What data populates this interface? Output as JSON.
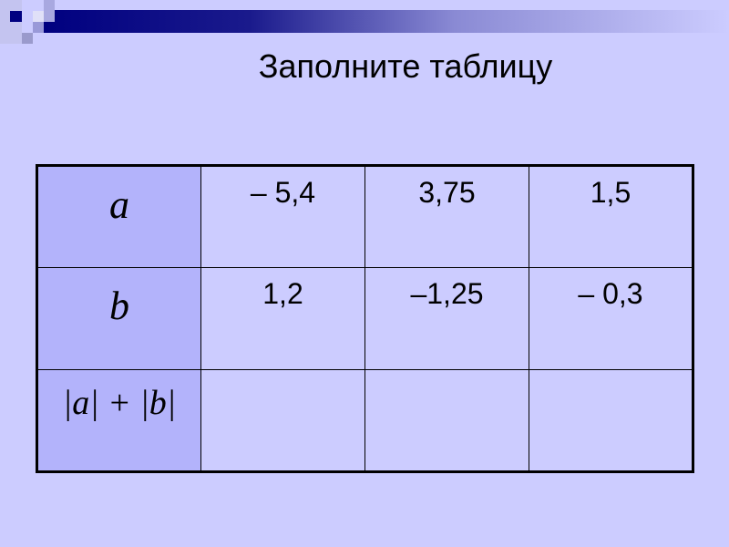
{
  "title": "Заполните таблицу",
  "table": {
    "rows": [
      {
        "header": "a",
        "values": [
          "– 5,4",
          "3,75",
          "1,5"
        ]
      },
      {
        "header": "b",
        "values": [
          "1,2",
          "–1,25",
          "– 0,3"
        ]
      },
      {
        "header": "|a| + |b|",
        "values": [
          "",
          "",
          ""
        ]
      }
    ]
  },
  "colors": {
    "background": "#ccccff",
    "header_cell": "#b3b3fb",
    "accent_bar": "#000080"
  }
}
